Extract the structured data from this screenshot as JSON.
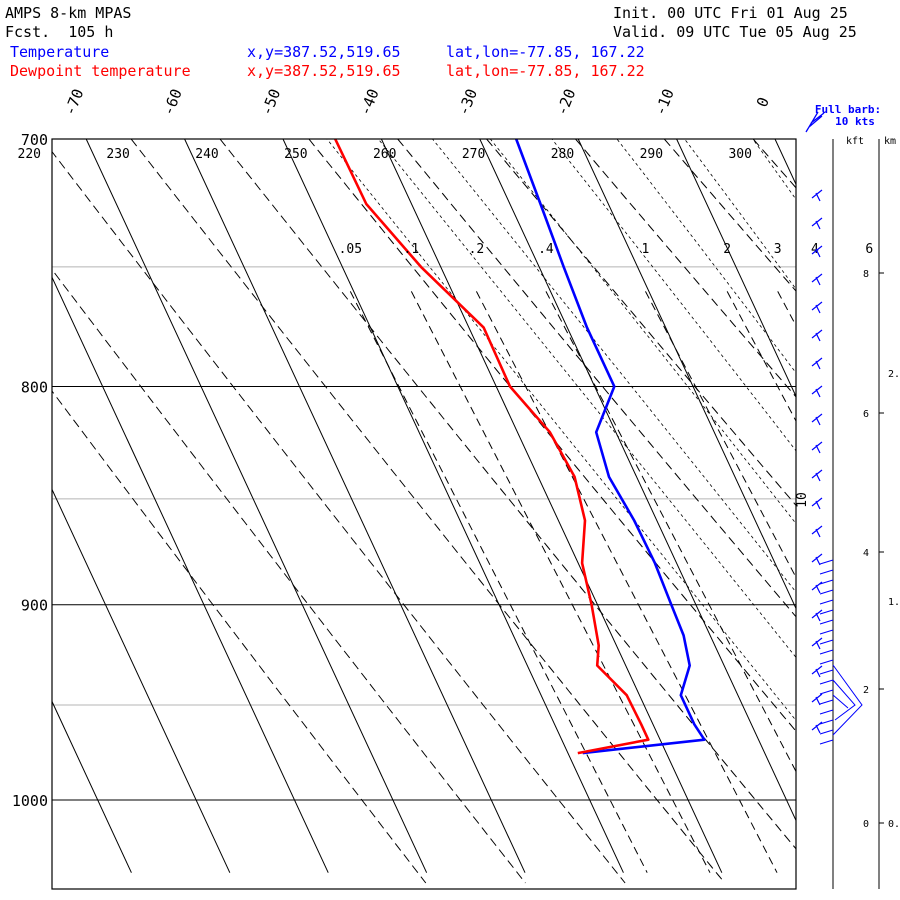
{
  "header": {
    "model": "AMPS 8-km MPAS",
    "forecast": "Fcst.  105 h",
    "init": "Init. 00 UTC Fri 01 Aug 25",
    "valid": "Valid. 09 UTC Tue 05 Aug 25",
    "temperature_label": "Temperature",
    "dewpoint_label": "Dewpoint temperature",
    "temperature_xy": "x,y=387.52,519.65",
    "dewpoint_xy": "x,y=387.52,519.65",
    "temperature_latlon": "lat,lon=-77.85, 167.22",
    "dewpoint_latlon": "lat,lon=-77.85, 167.22"
  },
  "colors": {
    "temperature": "#0000ff",
    "dewpoint": "#ff0000",
    "wind_barbs": "#0000ff",
    "grid": "#000000",
    "minor_grid": "#b4b4b4"
  },
  "chart_data": {
    "type": "line",
    "diagram": "skew-T log-p",
    "y_scale": "log",
    "ylim": [
      1040,
      700
    ],
    "isobar_labels": [
      "700",
      "800",
      "900",
      "1000"
    ],
    "isotherm_labels": [
      "-70",
      "-60",
      "-50",
      "-40",
      "-30",
      "-20",
      "-10",
      "0"
    ],
    "isotherm_values": [
      -70,
      -60,
      -50,
      -40,
      -30,
      -20,
      -10,
      0
    ],
    "dry_adiabat_labels": [
      "220",
      "230",
      "240",
      "250",
      "260",
      "270",
      "280",
      "290",
      "300"
    ],
    "dry_adiabat_values": [
      220,
      230,
      240,
      250,
      260,
      270,
      280,
      290,
      300
    ],
    "mixing_ratio_labels": [
      ".05",
      ".1",
      ".2",
      ".4",
      "1",
      "2",
      "3",
      "4",
      "6"
    ],
    "mixing_ratio_values": [
      0.05,
      0.1,
      0.2,
      0.4,
      1,
      2,
      3,
      4,
      6
    ],
    "series": [
      {
        "name": "Temperature",
        "p": [
          700,
          725,
          750,
          775,
          800,
          820,
          840,
          860,
          880,
          900,
          915,
          930,
          945,
          960,
          968,
          975
        ],
        "t": [
          -26.3,
          -26.9,
          -27.5,
          -28.0,
          -28.0,
          -32.0,
          -32.8,
          -32.3,
          -32.2,
          -32.5,
          -32.7,
          -33.5,
          -35.8,
          -35.8,
          -35.5,
          -48.5
        ]
      },
      {
        "name": "Dewpoint temperature",
        "p": [
          700,
          725,
          750,
          775,
          800,
          820,
          840,
          860,
          880,
          900,
          920,
          930,
          945,
          960,
          968,
          975
        ],
        "t": [
          -44.7,
          -44.6,
          -42.0,
          -38.5,
          -38.6,
          -36.7,
          -36.3,
          -37.3,
          -39.6,
          -40.6,
          -41.8,
          -42.9,
          -41.3,
          -41.2,
          -41.2,
          -49.0
        ]
      }
    ],
    "wind": {
      "barb_title": "Full barb:",
      "barb_value": "10 kts",
      "column_label": "10"
    },
    "height_axis": {
      "kft_label": "kft",
      "km_label": "km",
      "kft_ticks": [
        "0",
        "2",
        "4",
        "6",
        "8"
      ],
      "km_ticks": [
        "0.",
        "1.",
        "2."
      ]
    }
  }
}
